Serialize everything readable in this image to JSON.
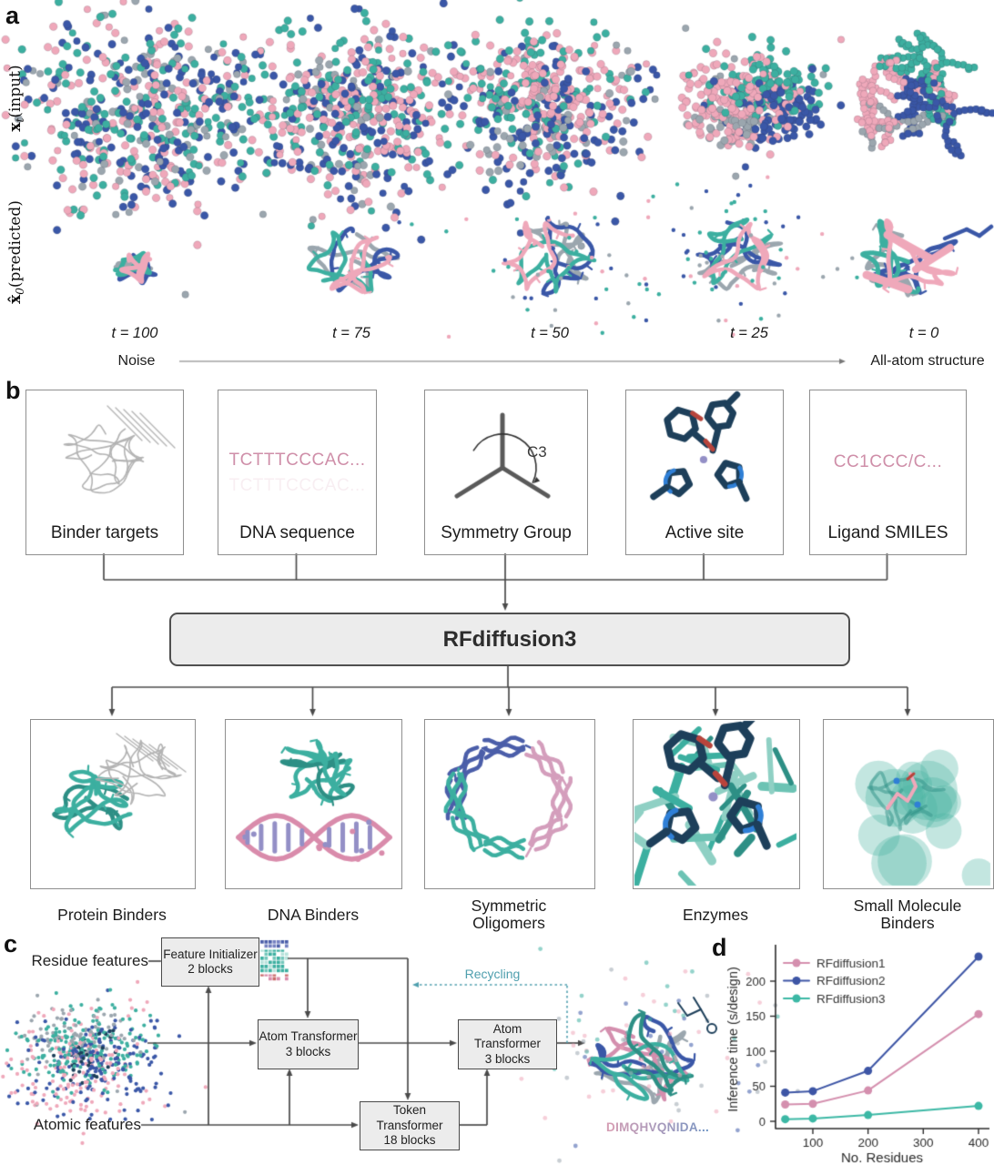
{
  "palette": {
    "pink": "#efa8ba",
    "rose": "#d48fae",
    "teal": "#3cafa0",
    "teal_dark": "#2d8f85",
    "teal_light": "#79c9bd",
    "blue": "#3a57a7",
    "blue_dark": "#2c4687",
    "gray": "#9ba6ae",
    "navy": "#1d3f5a",
    "red": "#b8443c",
    "light_blue": "#2f7fd6",
    "purple": "#938fc6",
    "dna_pink": "#d98bab",
    "olig_blue": "#4b5ea9",
    "olig_pink": "#d49ebc",
    "outline_gray": "#b3b3b3",
    "box_fill": "#ececec",
    "line": "#4a4a4a",
    "axis": "#2b2b2b",
    "recycle": "#4f9fae",
    "seq_start": "#d49eb4",
    "seq_end": "#6e94c4"
  },
  "panels": {
    "a": "a",
    "b": "b",
    "c": "c",
    "d": "d"
  },
  "panel_a": {
    "row1": {
      "base": "x",
      "sub": "t",
      "rest": "(input)"
    },
    "row2": {
      "base": "x̂",
      "sub": "0",
      "rest": "(predicted)"
    },
    "timesteps": [
      "t = 100",
      "t = 75",
      "t = 50",
      "t = 25",
      "t = 0"
    ],
    "axis_left": "Noise",
    "axis_right": "All-atom structure"
  },
  "panel_b": {
    "inputs": [
      {
        "label": "Binder targets",
        "icon": "protein-outline-icon",
        "icon_text": ""
      },
      {
        "label": "DNA sequence",
        "icon": "dna-sequence-text",
        "icon_text": "TCTTTCCCAC..."
      },
      {
        "label": "Symmetry Group",
        "icon": "c3-symmetry-icon",
        "icon_text": "C3"
      },
      {
        "label": "Active site",
        "icon": "active-site-molecule-icon",
        "icon_text": ""
      },
      {
        "label": "Ligand SMILES",
        "icon": "smiles-text",
        "icon_text": "CC1CCC/C..."
      }
    ],
    "model_label": "RFdiffusion3",
    "outputs": [
      {
        "label": "Protein Binders",
        "icon": "protein-binder-icon"
      },
      {
        "label": "DNA Binders",
        "icon": "dna-binder-icon"
      },
      {
        "label": "Symmetric Oligomers",
        "icon": "symmetric-oligomer-icon"
      },
      {
        "label": "Enzymes",
        "icon": "enzyme-icon"
      },
      {
        "label": "Small Molecule Binders",
        "icon": "small-molecule-binder-icon"
      }
    ]
  },
  "panel_c": {
    "residue_label": "Residue features",
    "atomic_label": "Atomic features",
    "boxes": [
      {
        "title": "Feature Initializer",
        "subtitle": "2 blocks"
      },
      {
        "title": "Atom Transformer",
        "subtitle": "3 blocks"
      },
      {
        "title": "Token Transformer",
        "subtitle": "18 blocks"
      },
      {
        "title": "Atom Transformer",
        "subtitle": "3 blocks"
      }
    ],
    "recycling_label": "Recycling",
    "sequence_text": "DIMQHVQNIDA..."
  },
  "chart_data": {
    "type": "line",
    "x": [
      50,
      100,
      200,
      400
    ],
    "series": [
      {
        "name": "RFdiffusion1",
        "color": "#d48fae",
        "values": [
          24,
          25,
          44,
          153
        ]
      },
      {
        "name": "RFdiffusion2",
        "color": "#3d55a5",
        "values": [
          41,
          43,
          72,
          235
        ]
      },
      {
        "name": "RFdiffusion3",
        "color": "#3cb8a5",
        "values": [
          3,
          4,
          9,
          22
        ]
      }
    ],
    "xlabel": "No. Residues",
    "ylabel": "Inference time (s/design)",
    "xticks": [
      100,
      200,
      300,
      400
    ],
    "yticks": [
      0,
      50,
      100,
      150,
      200
    ],
    "xlim": [
      30,
      420
    ],
    "ylim": [
      -8,
      245
    ],
    "grid": false,
    "legend_position": "upper left"
  }
}
